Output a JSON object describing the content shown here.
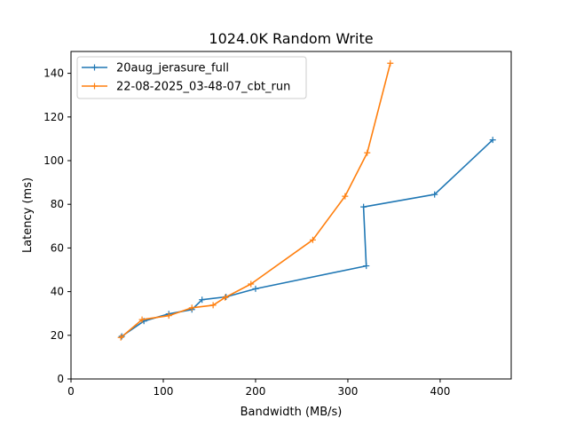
{
  "chart_data": {
    "type": "line",
    "title": "1024.0K  Random Write",
    "xlabel": "Bandwidth (MB/s)",
    "ylabel": "Latency (ms)",
    "xlim": [
      0,
      477
    ],
    "ylim": [
      0,
      150
    ],
    "xticks": [
      0,
      100,
      200,
      300,
      400
    ],
    "yticks": [
      0,
      20,
      40,
      60,
      80,
      100,
      120,
      140
    ],
    "grid": false,
    "legend_position": "top-left",
    "marker": "+",
    "series": [
      {
        "name": "20aug_jerasure_full",
        "color": "#1f77b4",
        "x": [
          55,
          79,
          106,
          131,
          142,
          168,
          200,
          320,
          317,
          394,
          457
        ],
        "y": [
          19.5,
          26.5,
          29.8,
          31.8,
          36.3,
          37.6,
          41.3,
          51.8,
          78.8,
          84.5,
          109.5
        ]
      },
      {
        "name": "22-08-2025_03-48-07_cbt_run",
        "color": "#ff7f0e",
        "x": [
          54,
          77,
          106,
          131,
          154,
          167,
          195,
          262,
          297,
          321,
          346
        ],
        "y": [
          19.0,
          27.2,
          29.0,
          32.6,
          33.8,
          37.3,
          43.5,
          63.7,
          83.7,
          103.6,
          144.6
        ]
      }
    ]
  }
}
